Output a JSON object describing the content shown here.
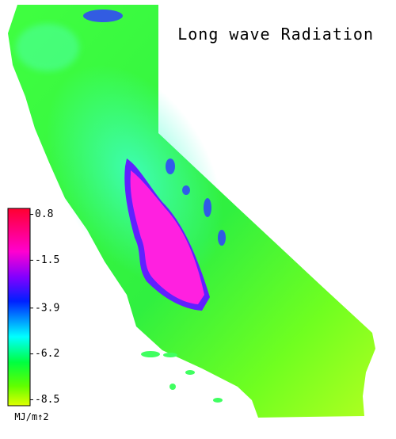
{
  "title": "Long wave Radiation",
  "colorbar": {
    "lim": [
      -8.8,
      1.1
    ],
    "ticks": [
      0.8,
      -1.5,
      -3.9,
      -6.2,
      -8.5
    ],
    "unit": "MJ/m↑2"
  }
}
